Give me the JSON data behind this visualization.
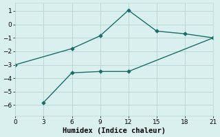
{
  "line1_x": [
    0,
    6,
    9,
    12,
    15,
    18,
    21
  ],
  "line1_y": [
    -3,
    -1.8,
    -0.85,
    1.05,
    -0.5,
    -0.7,
    -1.0
  ],
  "line2_x": [
    3,
    6,
    9,
    12,
    21
  ],
  "line2_y": [
    -5.8,
    -3.6,
    -3.5,
    -3.5,
    -1.0
  ],
  "line_color": "#1a6b6b",
  "marker_color": "#1a6b6b",
  "bg_color": "#d9f0ef",
  "grid_color": "#b8d8d5",
  "xlabel": "Humidex (Indice chaleur)",
  "xlim": [
    0,
    21
  ],
  "ylim": [
    -6.8,
    1.6
  ],
  "xticks": [
    0,
    3,
    6,
    9,
    12,
    15,
    18,
    21
  ],
  "yticks": [
    -6,
    -5,
    -4,
    -3,
    -2,
    -1,
    0,
    1
  ],
  "tick_fontsize": 6.5,
  "xlabel_fontsize": 7.5
}
